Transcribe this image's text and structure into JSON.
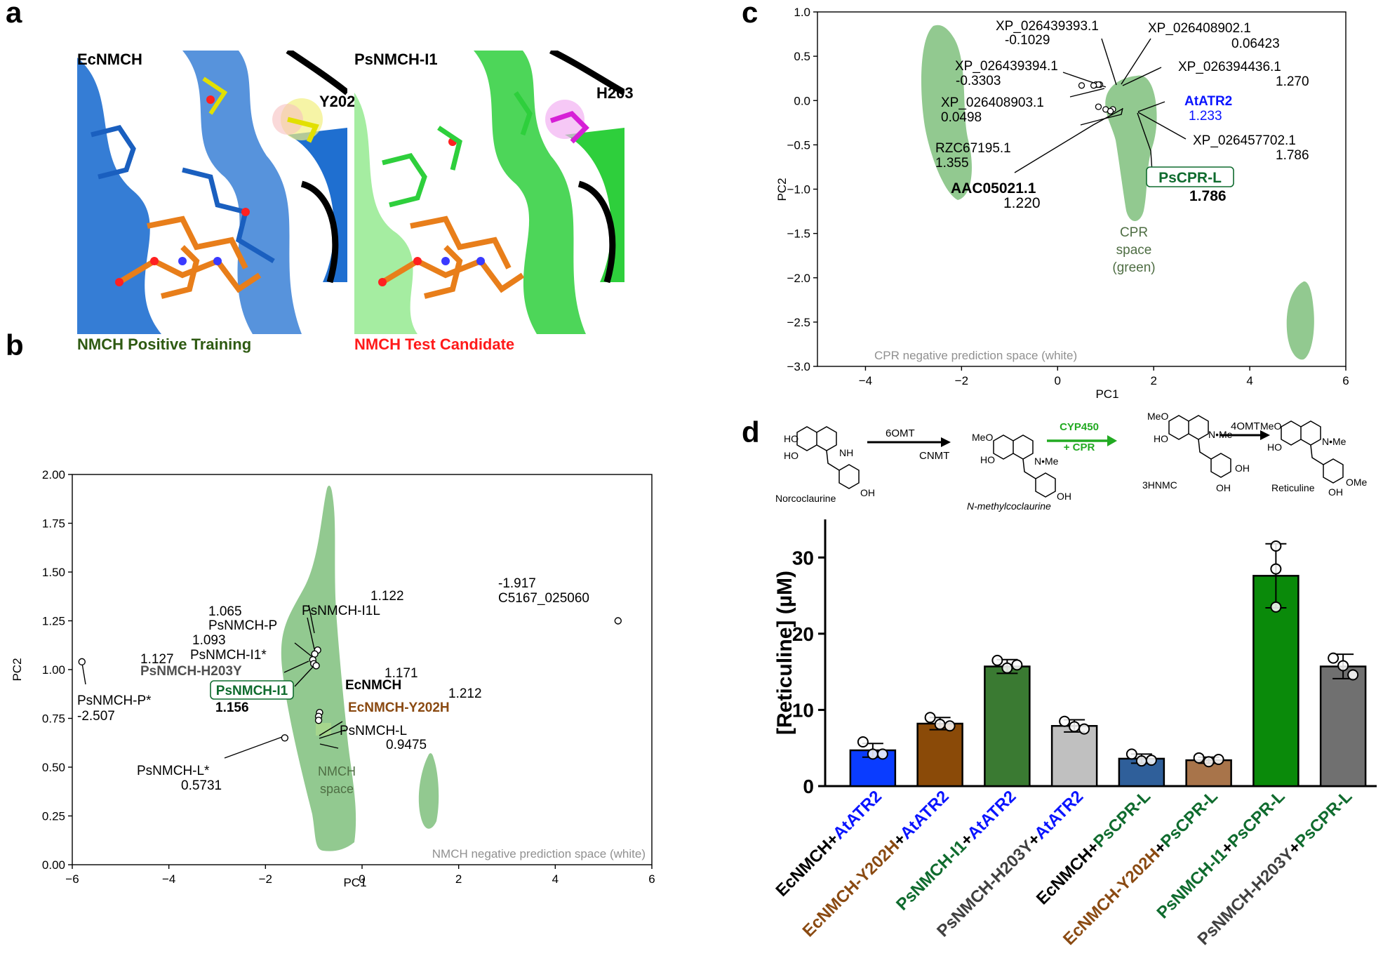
{
  "panel_labels": {
    "a": "a",
    "b": "b",
    "c": "c",
    "d": "d"
  },
  "panel_a": {
    "left": {
      "title": "EcNMCH",
      "residue": "Y202",
      "caption": "NMCH Positive Training",
      "caption_color": "#2e5a12",
      "protein_color": "#1f6fd0"
    },
    "right": {
      "title": "PsNMCH-I1",
      "residue": "H203",
      "caption": "NMCH Test Candidate",
      "caption_color": "#ff1a1a",
      "protein_color": "#2ecf3c"
    }
  },
  "colors": {
    "blue": "#0a14ff",
    "brown": "#8a4a12",
    "green_dark": "#0f6b2e",
    "space_green": "#7fc07d",
    "space_text": "#4f6e44",
    "gray_text": "#909090",
    "dark_gray": "#404040"
  },
  "chart_data": [
    {
      "type": "scatter",
      "panel": "b",
      "xlabel": "PC1",
      "ylabel": "PC2",
      "xlim": [
        -6,
        6
      ],
      "ylim": [
        0,
        2
      ],
      "xticks": [
        "−6",
        "−4",
        "−2",
        "0",
        "2",
        "4",
        "6"
      ],
      "yticks": [
        "0.00",
        "0.25",
        "0.50",
        "0.75",
        "1.00",
        "1.25",
        "1.50",
        "1.75",
        "2.00"
      ],
      "region_label": [
        "NMCH",
        "space"
      ],
      "negative_space_label": "NMCH negative prediction space (white)",
      "points": [
        {
          "name": "PsNMCH-P*",
          "value": "-2.507",
          "x": -5.8,
          "y": 1.04
        },
        {
          "name": "C5167_025060",
          "value": "-1.917",
          "x": 5.3,
          "y": 1.25
        },
        {
          "name": "PsNMCH-L*",
          "value": "0.5731",
          "x": -1.6,
          "y": 0.65
        },
        {
          "name": "PsNMCH-I1L",
          "value": "1.122",
          "x": -0.92,
          "y": 1.1
        },
        {
          "name": "PsNMCH-P",
          "value": "1.065",
          "x": -0.98,
          "y": 1.08
        },
        {
          "name": "PsNMCH-I1*",
          "value": "1.093",
          "x": -1.02,
          "y": 1.05
        },
        {
          "name": "PsNMCH-H203Y",
          "value": "1.127",
          "x": -1.0,
          "y": 1.03
        },
        {
          "name": "PsNMCH-I1",
          "value": "1.156",
          "x": -0.95,
          "y": 1.02
        },
        {
          "name": "EcNMCH",
          "value": "1.171",
          "x": -0.88,
          "y": 0.78
        },
        {
          "name": "EcNMCH-Y202H",
          "value": "1.212",
          "x": -0.9,
          "y": 0.76
        },
        {
          "name": "PsNMCH-L",
          "value": "0.9475",
          "x": -0.9,
          "y": 0.74
        }
      ]
    },
    {
      "type": "scatter",
      "panel": "c",
      "xlabel": "PC1",
      "ylabel": "PC2",
      "xlim": [
        -5,
        6
      ],
      "ylim": [
        -3,
        1
      ],
      "xticks": [
        "−4",
        "−2",
        "0",
        "2",
        "4",
        "6"
      ],
      "yticks": [
        "−3.0",
        "−2.5",
        "−2.0",
        "−1.5",
        "−1.0",
        "−0.5",
        "0.0",
        "0.5",
        "1.0"
      ],
      "region_label": [
        "CPR",
        "space",
        "(green)"
      ],
      "negative_space_label": "CPR negative prediction space (white)",
      "points": [
        {
          "name": "XP_026439393.1",
          "value": "-0.1029",
          "x": 0.8,
          "y": 0.18
        },
        {
          "name": "XP_026408902.1",
          "value": "0.06423",
          "x": 0.88,
          "y": 0.18
        },
        {
          "name": "XP_026439394.1",
          "value": "-0.3303",
          "x": 0.5,
          "y": 0.17
        },
        {
          "name": "XP_026394436.1",
          "value": "1.270",
          "x": 0.85,
          "y": 0.18
        },
        {
          "name": "XP_026408903.1",
          "value": "0.0498",
          "x": 0.75,
          "y": 0.17
        },
        {
          "name": "AtATR2",
          "value": "1.233",
          "x": 1.15,
          "y": -0.1
        },
        {
          "name": "XP_026457702.1",
          "value": "1.786",
          "x": 1.1,
          "y": -0.12
        },
        {
          "name": "RZC67195.1",
          "value": "1.355",
          "x": 0.85,
          "y": -0.07
        },
        {
          "name": "AAC05021.1",
          "value": "1.220",
          "x": 1.0,
          "y": -0.1
        },
        {
          "name": "PsCPR-L",
          "value": "1.786",
          "x": 1.1,
          "y": -0.12
        }
      ]
    },
    {
      "type": "bar",
      "panel": "d",
      "ylabel": "[Reticuline] (µM)",
      "ylim": [
        0,
        35
      ],
      "yticks": [
        "0",
        "10",
        "20",
        "30"
      ],
      "categories": [
        {
          "enzyme": "EcNMCH",
          "partner": "AtATR2"
        },
        {
          "enzyme": "EcNMCH-Y202H",
          "partner": "AtATR2"
        },
        {
          "enzyme": "PsNMCH-I1",
          "partner": "AtATR2"
        },
        {
          "enzyme": "PsNMCH-H203Y",
          "partner": "AtATR2"
        },
        {
          "enzyme": "EcNMCH",
          "partner": "PsCPR-L"
        },
        {
          "enzyme": "EcNMCH-Y202H",
          "partner": "PsCPR-L"
        },
        {
          "enzyme": "PsNMCH-I1",
          "partner": "PsCPR-L"
        },
        {
          "enzyme": "PsNMCH-H203Y",
          "partner": "PsCPR-L"
        }
      ],
      "values": [
        4.7,
        8.2,
        15.7,
        7.9,
        3.6,
        3.4,
        27.6,
        15.7
      ],
      "errors": [
        0.9,
        0.8,
        0.9,
        0.8,
        0.6,
        0.4,
        4.2,
        1.6
      ],
      "replicates": [
        [
          5.8,
          4.2,
          4.2
        ],
        [
          9.0,
          8.1,
          7.9
        ],
        [
          16.5,
          15.5,
          15.9
        ],
        [
          8.5,
          7.8,
          7.5
        ],
        [
          4.2,
          3.3,
          3.4
        ],
        [
          3.7,
          3.2,
          3.5
        ],
        [
          31.5,
          28.5,
          23.5
        ],
        [
          16.8,
          15.8,
          14.6
        ]
      ],
      "bar_colors": [
        "#0a3cff",
        "#8a4a08",
        "#3a7a32",
        "#c0c0c0",
        "#2f5f9a",
        "#a8744a",
        "#0a8a0a",
        "#707070"
      ],
      "enzyme_colors": [
        "#000000",
        "#8a4a12",
        "#0f6b2e",
        "#404040",
        "#000000",
        "#8a4a12",
        "#0f6b2e",
        "#404040"
      ],
      "partner_colors": {
        "AtATR2": "#0a14ff",
        "PsCPR-L": "#0f6b2e"
      }
    }
  ],
  "pathway": {
    "compounds": [
      "Norcoclaurine",
      "N-methylcoclaurine",
      "3HNMC",
      "Reticuline"
    ],
    "enzymes": [
      "6OMT",
      "CNMT",
      "CYP450",
      "+ CPR",
      "4OMT"
    ],
    "atoms": {
      "ho": "HO",
      "oh": "OH",
      "nh": "NH",
      "meo": "MeO",
      "ome": "OMe",
      "nme": "N•Me",
      "n": "N",
      "me": "Me"
    },
    "cyp_color": "#22aa22"
  }
}
